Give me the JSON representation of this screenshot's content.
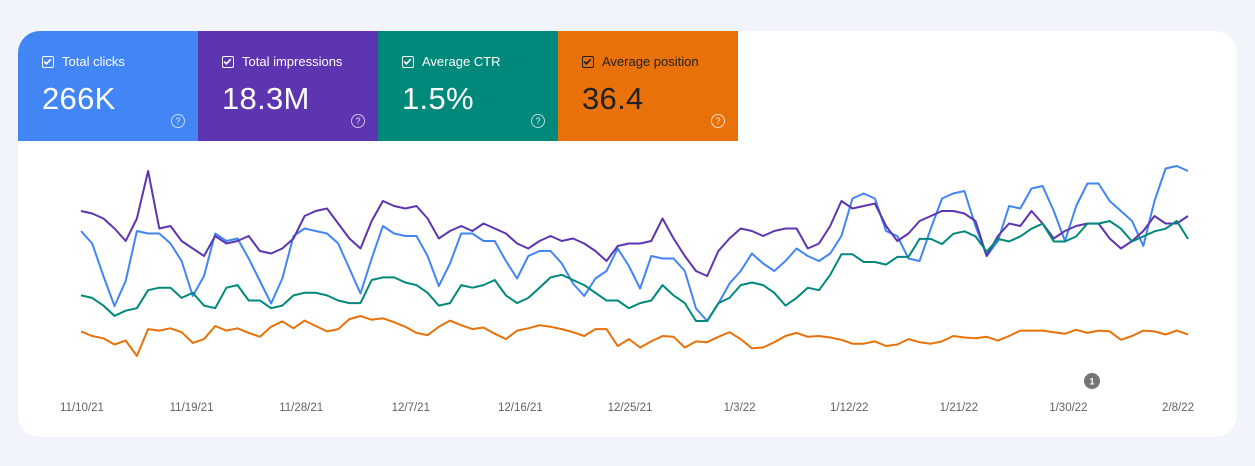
{
  "metrics": [
    {
      "label": "Total clicks",
      "value": "266K",
      "color": "#4285f4",
      "text_color": "#ffffff",
      "checked": true
    },
    {
      "label": "Total impressions",
      "value": "18.3M",
      "color": "#5e35b1",
      "text_color": "#ffffff",
      "checked": true
    },
    {
      "label": "Average CTR",
      "value": "1.5%",
      "color": "#00897b",
      "text_color": "#ffffff",
      "checked": true
    },
    {
      "label": "Average position",
      "value": "36.4",
      "color": "#e8710a",
      "text_color": "#202124",
      "checked": true
    }
  ],
  "help_icon": "help-circle-icon",
  "annotation": {
    "label": "1"
  },
  "chart_data": {
    "type": "line",
    "x_ticks": [
      "11/10/21",
      "11/19/21",
      "11/28/21",
      "12/7/21",
      "12/16/21",
      "12/25/21",
      "1/3/22",
      "1/12/22",
      "1/21/22",
      "1/30/22",
      "2/8/22"
    ],
    "y_axis_visible": false,
    "grid": false,
    "series": [
      {
        "name": "Total clicks",
        "color": "#4285f4",
        "values": [
          64,
          59,
          46,
          34,
          44,
          64,
          63,
          63,
          59,
          52,
          38,
          46,
          63,
          60,
          61,
          53,
          44,
          35,
          45,
          62,
          65,
          64,
          63,
          59,
          49,
          39,
          53,
          66,
          63,
          62,
          62,
          54,
          42,
          51,
          63,
          63,
          60,
          60,
          52,
          45,
          54,
          56,
          56,
          51,
          43,
          38,
          45,
          48,
          57,
          50,
          41,
          54,
          53,
          53,
          48,
          33,
          28,
          35,
          43,
          48,
          55,
          51,
          48,
          52,
          57,
          54,
          52,
          55,
          62,
          77,
          79,
          77,
          64,
          62,
          53,
          52,
          65,
          77,
          79,
          80,
          66,
          54,
          60,
          74,
          73,
          81,
          82,
          72,
          60,
          74,
          83,
          83,
          76,
          72,
          68,
          58,
          76,
          89,
          90,
          88
        ]
      },
      {
        "name": "Total impressions",
        "color": "#5e35b1",
        "values": [
          68,
          67,
          65,
          61,
          56,
          65,
          84,
          61,
          62,
          56,
          53,
          50,
          58,
          55,
          56,
          58,
          52,
          51,
          53,
          57,
          66,
          68,
          69,
          63,
          57,
          53,
          64,
          72,
          70,
          69,
          70,
          65,
          57,
          60,
          62,
          60,
          63,
          61,
          59,
          55,
          53,
          56,
          58,
          56,
          57,
          55,
          52,
          48,
          54,
          55,
          55,
          56,
          65,
          57,
          50,
          44,
          42,
          52,
          57,
          61,
          60,
          58,
          60,
          61,
          61,
          53,
          55,
          62,
          72,
          69,
          70,
          71,
          62,
          56,
          59,
          64,
          66,
          68,
          68,
          67,
          64,
          50,
          58,
          63,
          62,
          68,
          63,
          57,
          60,
          62,
          63,
          63,
          57,
          53,
          56,
          60,
          66,
          63,
          63,
          66
        ]
      },
      {
        "name": "Average CTR",
        "color": "#00897b",
        "values": [
          35,
          34,
          31,
          27,
          29,
          30,
          37,
          38,
          38,
          34,
          36,
          31,
          30,
          38,
          39,
          33,
          33,
          30,
          31,
          35,
          36,
          36,
          35,
          33,
          32,
          32,
          41,
          42,
          42,
          40,
          39,
          36,
          31,
          32,
          39,
          38,
          39,
          41,
          35,
          32,
          34,
          38,
          42,
          43,
          41,
          39,
          36,
          33,
          33,
          30,
          32,
          33,
          39,
          35,
          32,
          25,
          25,
          32,
          34,
          39,
          40,
          39,
          36,
          31,
          34,
          38,
          37,
          43,
          51,
          51,
          48,
          48,
          47,
          50,
          50,
          57,
          57,
          55,
          59,
          60,
          58,
          52,
          57,
          56,
          58,
          61,
          63,
          56,
          56,
          58,
          63,
          63,
          64,
          61,
          56,
          58,
          60,
          61,
          64,
          57
        ]
      },
      {
        "name": "Average position",
        "color": "#e8710a",
        "values": [
          36.2,
          36.8,
          37.1,
          37.9,
          37.4,
          39.4,
          35.9,
          36.1,
          35.8,
          36.3,
          37.7,
          37.2,
          35.5,
          36.1,
          35.8,
          36.4,
          36.9,
          35.6,
          34.9,
          35.8,
          34.8,
          35.5,
          36.2,
          35.9,
          34.6,
          34.2,
          34.7,
          34.5,
          35.0,
          35.6,
          36.4,
          36.7,
          35.6,
          34.8,
          35.4,
          35.9,
          35.7,
          36.5,
          37.2,
          36.1,
          35.8,
          35.4,
          35.6,
          35.9,
          36.3,
          36.8,
          35.9,
          35.9,
          38.1,
          37.2,
          38.3,
          37.5,
          36.8,
          36.9,
          38.3,
          37.5,
          37.6,
          36.9,
          36.3,
          37.2,
          38.4,
          38.3,
          37.6,
          36.8,
          36.4,
          36.9,
          36.8,
          37.0,
          37.3,
          37.8,
          37.8,
          37.5,
          38.1,
          37.9,
          37.2,
          37.6,
          37.8,
          37.5,
          36.8,
          37.0,
          37.1,
          36.9,
          37.4,
          36.8,
          36.1,
          36.1,
          36.1,
          36.3,
          36.5,
          36.0,
          36.4,
          36.1,
          36.2,
          37.3,
          36.8,
          36.1,
          36.2,
          36.6,
          36.1,
          36.6
        ]
      }
    ]
  }
}
